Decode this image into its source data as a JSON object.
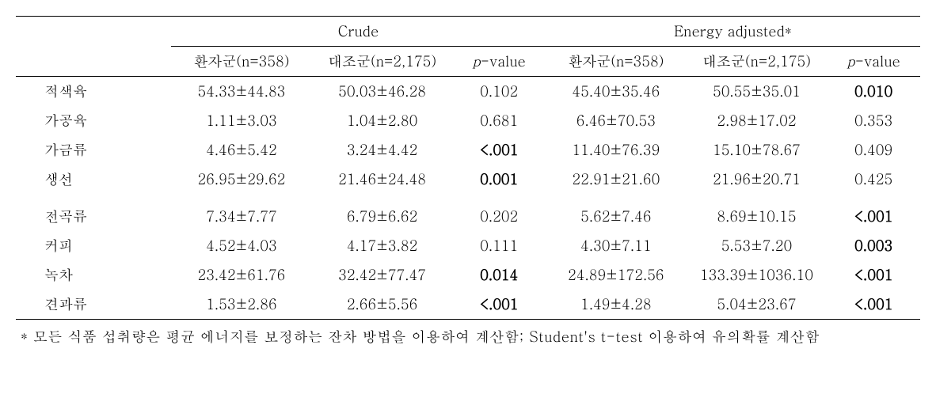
{
  "headers": {
    "group1": "Crude",
    "group2": "Energy adjusted*",
    "sub1": "환자군(n=358)",
    "sub2": "대조군(n=2,175)",
    "pvalue_prefix": "p",
    "pvalue_suffix": "-value"
  },
  "rows": [
    {
      "label": "적색육",
      "crude_case": "54.33±44.83",
      "crude_control": "50.03±46.28",
      "crude_p": "0.102",
      "crude_p_bold": false,
      "adj_case": "45.40±35.46",
      "adj_control": "50.55±35.01",
      "adj_p": "0.010",
      "adj_p_bold": true
    },
    {
      "label": "가공육",
      "crude_case": "1.11±3.03",
      "crude_control": "1.04±2.80",
      "crude_p": "0.681",
      "crude_p_bold": false,
      "adj_case": "6.46±70.53",
      "adj_control": "2.98±17.02",
      "adj_p": "0.353",
      "adj_p_bold": false
    },
    {
      "label": "가금류",
      "crude_case": "4.46±5.42",
      "crude_control": "3.24±4.42",
      "crude_p": "<.001",
      "crude_p_bold": true,
      "adj_case": "11.40±76.39",
      "adj_control": "15.10±78.67",
      "adj_p": "0.409",
      "adj_p_bold": false
    },
    {
      "label": "생선",
      "crude_case": "26.95±29.62",
      "crude_control": "21.46±24.48",
      "crude_p": "0.001",
      "crude_p_bold": true,
      "adj_case": "22.91±21.60",
      "adj_control": "21.96±20.71",
      "adj_p": "0.425",
      "adj_p_bold": false
    }
  ],
  "rows2": [
    {
      "label": "전곡류",
      "crude_case": "7.34±7.77",
      "crude_control": "6.79±6.62",
      "crude_p": "0.202",
      "crude_p_bold": false,
      "adj_case": "5.62±7.46",
      "adj_control": "8.69±10.15",
      "adj_p": "<.001",
      "adj_p_bold": true
    },
    {
      "label": "커피",
      "crude_case": "4.52±4.03",
      "crude_control": "4.17±3.82",
      "crude_p": "0.111",
      "crude_p_bold": false,
      "adj_case": "4.30±7.11",
      "adj_control": "5.53±7.20",
      "adj_p": "0.003",
      "adj_p_bold": true
    },
    {
      "label": "녹차",
      "crude_case": "23.42±61.76",
      "crude_control": "32.42±77.47",
      "crude_p": "0.014",
      "crude_p_bold": true,
      "adj_case": "24.89±172.56",
      "adj_control": "133.39±1036.10",
      "adj_p": "<.001",
      "adj_p_bold": true
    },
    {
      "label": "견과류",
      "crude_case": "1.53±2.86",
      "crude_control": "2.66±5.56",
      "crude_p": "<.001",
      "crude_p_bold": true,
      "adj_case": "1.49±4.28",
      "adj_control": "5.04±23.67",
      "adj_p": "<.001",
      "adj_p_bold": true
    }
  ],
  "footnote": "* 모든 식품 섭취량은 평균 에너지를 보정하는 잔차 방법을 이용하여 계산함; Student's t-test 이용하여 유의확률 계산함"
}
